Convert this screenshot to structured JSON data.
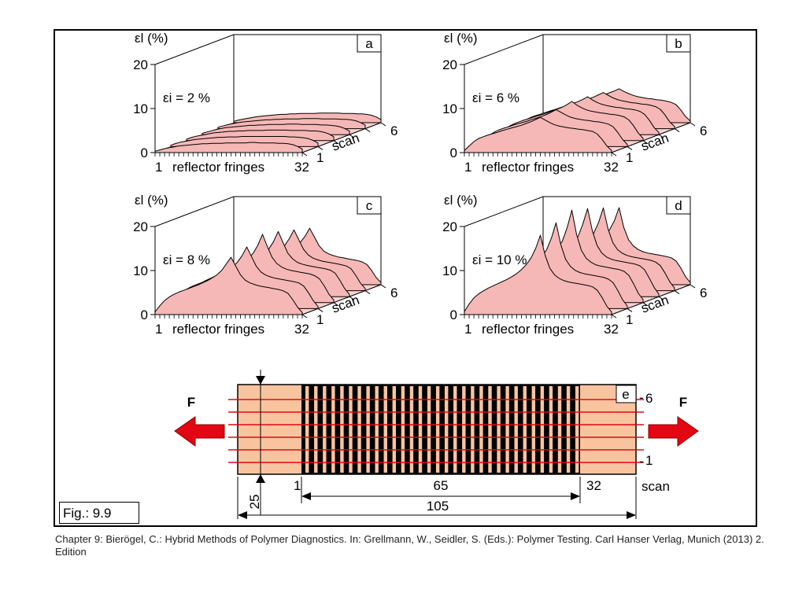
{
  "figure_label": "Fig.: 9.9",
  "caption": "Chapter 9: Bierögel, C.: Hybrid Methods of Polymer Diagnostics. In: Grellmann, W., Seidler, S. (Eds.): Polymer Testing. Carl Hanser Verlag, Munich (2013) 2. Edition",
  "colors": {
    "surface_fill": "#f5b8b6",
    "surface_floor": "#f9d3d1",
    "specimen": "#f8c4a0",
    "arrow": "#e30613",
    "scan_line": "#e30613"
  },
  "chart_data": [
    {
      "type": "area",
      "panel": "a",
      "strain_label": "εi = 2  %",
      "ylabel": "εl (%)",
      "xlabel": "reflector fringes",
      "x_ticks": [
        "1",
        "32"
      ],
      "y_ticks": [
        "0",
        "10",
        "20"
      ],
      "ylim": [
        0,
        20
      ],
      "depth_label": "scan",
      "depth_ticks": [
        "1",
        "6"
      ],
      "x_range": [
        1,
        32
      ],
      "series": [
        {
          "values": [
            0.3,
            0.6,
            0.9,
            1.1,
            1.3,
            1.5,
            1.6,
            1.7,
            1.8,
            1.9,
            2.0,
            2.0,
            2.1,
            2.1,
            2.1,
            2.2,
            2.2,
            2.2,
            2.2,
            2.2,
            2.3,
            2.3,
            2.2,
            2.2,
            2.2,
            2.2,
            2.1,
            2.1,
            2.0,
            1.8,
            1.4,
            0.8
          ]
        },
        {
          "values": [
            0.3,
            0.7,
            1.0,
            1.2,
            1.4,
            1.6,
            1.7,
            1.8,
            1.9,
            2.0,
            2.1,
            2.1,
            2.2,
            2.2,
            2.2,
            2.3,
            2.3,
            2.3,
            2.3,
            2.3,
            2.3,
            2.3,
            2.3,
            2.3,
            2.3,
            2.2,
            2.2,
            2.1,
            2.0,
            1.8,
            1.4,
            0.8
          ]
        },
        {
          "values": [
            0.3,
            0.7,
            1.0,
            1.2,
            1.4,
            1.6,
            1.8,
            1.9,
            2.0,
            2.1,
            2.1,
            2.2,
            2.2,
            2.3,
            2.3,
            2.3,
            2.3,
            2.4,
            2.4,
            2.4,
            2.4,
            2.4,
            2.3,
            2.3,
            2.3,
            2.3,
            2.2,
            2.2,
            2.1,
            1.9,
            1.5,
            0.9
          ]
        },
        {
          "values": [
            0.3,
            0.6,
            0.9,
            1.2,
            1.4,
            1.6,
            1.7,
            1.8,
            1.9,
            2.0,
            2.1,
            2.1,
            2.2,
            2.2,
            2.3,
            2.3,
            2.3,
            2.3,
            2.4,
            2.4,
            2.4,
            2.3,
            2.3,
            2.3,
            2.3,
            2.2,
            2.2,
            2.1,
            2.0,
            1.8,
            1.4,
            0.8
          ]
        },
        {
          "values": [
            0.3,
            0.6,
            0.9,
            1.1,
            1.3,
            1.5,
            1.6,
            1.7,
            1.8,
            1.9,
            2.0,
            2.0,
            2.1,
            2.1,
            2.2,
            2.2,
            2.2,
            2.2,
            2.3,
            2.3,
            2.3,
            2.3,
            2.2,
            2.2,
            2.2,
            2.2,
            2.1,
            2.1,
            2.0,
            1.8,
            1.4,
            0.8
          ]
        },
        {
          "values": [
            0.3,
            0.6,
            0.8,
            1.0,
            1.2,
            1.4,
            1.5,
            1.6,
            1.7,
            1.8,
            1.9,
            1.9,
            2.0,
            2.0,
            2.1,
            2.1,
            2.1,
            2.1,
            2.2,
            2.2,
            2.2,
            2.2,
            2.2,
            2.1,
            2.1,
            2.1,
            2.0,
            2.0,
            1.9,
            1.7,
            1.3,
            0.7
          ]
        }
      ]
    },
    {
      "type": "area",
      "panel": "b",
      "strain_label": "εi = 6  %",
      "ylabel": "εl (%)",
      "xlabel": "reflector fringes",
      "x_ticks": [
        "1",
        "32"
      ],
      "y_ticks": [
        "0",
        "10",
        "20"
      ],
      "ylim": [
        0,
        20
      ],
      "depth_label": "scan",
      "depth_ticks": [
        "1",
        "6"
      ],
      "x_range": [
        1,
        32
      ],
      "series": [
        {
          "values": [
            0.5,
            1.5,
            2.5,
            3.2,
            3.6,
            4.0,
            4.3,
            4.6,
            5.0,
            5.3,
            5.6,
            5.9,
            6.2,
            6.6,
            7.0,
            7.5,
            8.0,
            7.4,
            6.8,
            6.3,
            6.0,
            5.8,
            5.6,
            5.5,
            5.3,
            5.2,
            5.0,
            4.8,
            4.2,
            3.0,
            1.5,
            0.5
          ]
        },
        {
          "values": [
            0.5,
            1.6,
            2.6,
            3.3,
            3.8,
            4.2,
            4.5,
            4.9,
            5.2,
            5.5,
            5.8,
            6.2,
            6.5,
            6.9,
            7.3,
            7.8,
            8.4,
            7.8,
            7.2,
            6.7,
            6.4,
            6.2,
            6.0,
            5.9,
            5.7,
            5.6,
            5.4,
            5.1,
            4.5,
            3.2,
            1.6,
            0.5
          ]
        },
        {
          "values": [
            0.5,
            1.6,
            2.7,
            3.4,
            3.9,
            4.3,
            4.7,
            5.0,
            5.4,
            5.7,
            6.0,
            6.4,
            6.8,
            7.2,
            7.6,
            8.2,
            8.9,
            8.1,
            7.5,
            7.0,
            6.7,
            6.5,
            6.3,
            6.2,
            6.0,
            5.9,
            5.7,
            5.4,
            4.7,
            3.4,
            1.7,
            0.5
          ]
        },
        {
          "values": [
            0.5,
            1.6,
            2.6,
            3.4,
            3.9,
            4.3,
            4.6,
            5.0,
            5.3,
            5.6,
            6.0,
            6.3,
            6.7,
            7.1,
            7.5,
            8.0,
            8.6,
            7.9,
            7.3,
            6.9,
            6.6,
            6.4,
            6.2,
            6.1,
            5.9,
            5.8,
            5.6,
            5.3,
            4.6,
            3.3,
            1.6,
            0.5
          ]
        },
        {
          "values": [
            0.5,
            1.5,
            2.5,
            3.3,
            3.7,
            4.1,
            4.4,
            4.8,
            5.1,
            5.4,
            5.7,
            6.1,
            6.4,
            6.8,
            7.2,
            7.7,
            8.2,
            7.6,
            7.0,
            6.6,
            6.3,
            6.1,
            5.9,
            5.8,
            5.6,
            5.5,
            5.3,
            5.0,
            4.4,
            3.1,
            1.5,
            0.5
          ]
        },
        {
          "values": [
            0.5,
            1.4,
            2.4,
            3.1,
            3.5,
            3.9,
            4.2,
            4.5,
            4.8,
            5.1,
            5.4,
            5.7,
            6.0,
            6.4,
            6.8,
            7.2,
            7.7,
            7.1,
            6.6,
            6.2,
            5.9,
            5.7,
            5.5,
            5.4,
            5.2,
            5.1,
            4.9,
            4.6,
            4.1,
            2.9,
            1.4,
            0.4
          ]
        }
      ]
    },
    {
      "type": "area",
      "panel": "c",
      "strain_label": "εi = 8  %",
      "ylabel": "εl (%)",
      "xlabel": "reflector fringes",
      "x_ticks": [
        "1",
        "32"
      ],
      "y_ticks": [
        "0",
        "10",
        "20"
      ],
      "ylim": [
        0,
        20
      ],
      "depth_label": "scan",
      "depth_ticks": [
        "1",
        "6"
      ],
      "x_range": [
        1,
        32
      ],
      "series": [
        {
          "values": [
            0.6,
            2.0,
            3.2,
            4.0,
            4.6,
            5.1,
            5.5,
            5.9,
            6.3,
            6.7,
            7.2,
            7.7,
            8.3,
            9.0,
            10.0,
            11.5,
            13.0,
            11.0,
            9.0,
            7.8,
            7.2,
            6.8,
            6.5,
            6.3,
            6.1,
            5.9,
            5.7,
            5.4,
            4.8,
            3.4,
            1.7,
            0.5
          ]
        },
        {
          "values": [
            0.6,
            2.1,
            3.4,
            4.2,
            4.8,
            5.3,
            5.7,
            6.1,
            6.5,
            7.0,
            7.5,
            8.0,
            8.7,
            9.5,
            10.5,
            12.0,
            14.0,
            11.8,
            9.6,
            8.3,
            7.6,
            7.2,
            6.9,
            6.7,
            6.5,
            6.3,
            6.1,
            5.8,
            5.1,
            3.6,
            1.8,
            0.5
          ]
        },
        {
          "values": [
            0.6,
            2.2,
            3.5,
            4.4,
            5.0,
            5.5,
            6.0,
            6.4,
            6.8,
            7.3,
            7.8,
            8.4,
            9.1,
            10.0,
            11.2,
            13.0,
            15.5,
            12.8,
            10.3,
            8.9,
            8.1,
            7.6,
            7.3,
            7.1,
            6.9,
            6.7,
            6.5,
            6.1,
            5.4,
            3.8,
            1.9,
            0.6
          ]
        },
        {
          "values": [
            0.6,
            2.2,
            3.5,
            4.3,
            4.9,
            5.4,
            5.9,
            6.3,
            6.7,
            7.1,
            7.6,
            8.2,
            8.9,
            9.7,
            10.8,
            12.5,
            14.8,
            12.3,
            9.9,
            8.6,
            7.8,
            7.4,
            7.1,
            6.9,
            6.7,
            6.5,
            6.3,
            6.0,
            5.3,
            3.7,
            1.8,
            0.5
          ]
        },
        {
          "values": [
            0.6,
            2.1,
            3.3,
            4.1,
            4.7,
            5.2,
            5.6,
            6.0,
            6.4,
            6.8,
            7.3,
            7.8,
            8.5,
            9.2,
            10.2,
            11.8,
            13.8,
            11.6,
            9.4,
            8.1,
            7.4,
            7.0,
            6.7,
            6.5,
            6.3,
            6.1,
            5.9,
            5.6,
            5.0,
            3.5,
            1.7,
            0.5
          ]
        },
        {
          "values": [
            0.5,
            1.9,
            3.1,
            3.9,
            4.4,
            4.9,
            5.3,
            5.7,
            6.1,
            6.5,
            6.9,
            7.4,
            8.0,
            8.7,
            9.6,
            11.0,
            12.8,
            10.8,
            8.8,
            7.6,
            7.0,
            6.6,
            6.3,
            6.1,
            5.9,
            5.7,
            5.5,
            5.2,
            4.6,
            3.3,
            1.6,
            0.5
          ]
        }
      ]
    },
    {
      "type": "area",
      "panel": "d",
      "strain_label": "εi = 10 %",
      "ylabel": "εl (%)",
      "xlabel": "reflector fringes",
      "x_ticks": [
        "1",
        "32"
      ],
      "y_ticks": [
        "0",
        "10",
        "20"
      ],
      "ylim": [
        0,
        20
      ],
      "depth_label": "scan",
      "depth_ticks": [
        "1",
        "6"
      ],
      "x_range": [
        1,
        32
      ],
      "series": [
        {
          "values": [
            0.7,
            2.4,
            3.8,
            4.7,
            5.4,
            6.0,
            6.5,
            7.0,
            7.5,
            8.0,
            8.6,
            9.3,
            10.2,
            11.3,
            12.8,
            15.0,
            18.0,
            13.5,
            10.5,
            9.0,
            8.2,
            7.7,
            7.4,
            7.2,
            7.0,
            6.8,
            6.6,
            6.3,
            5.5,
            3.9,
            1.9,
            0.6
          ]
        },
        {
          "values": [
            0.7,
            2.5,
            4.0,
            4.9,
            5.6,
            6.2,
            6.7,
            7.2,
            7.8,
            8.3,
            8.9,
            9.7,
            10.6,
            11.8,
            13.4,
            16.0,
            19.5,
            14.5,
            11.2,
            9.6,
            8.7,
            8.2,
            7.9,
            7.7,
            7.5,
            7.3,
            7.1,
            6.7,
            5.9,
            4.1,
            2.0,
            0.6
          ]
        },
        {
          "values": [
            0.7,
            2.6,
            4.1,
            5.0,
            5.8,
            6.4,
            6.9,
            7.5,
            8.0,
            8.6,
            9.2,
            10.0,
            11.0,
            12.3,
            14.0,
            17.0,
            21.0,
            15.5,
            11.9,
            10.1,
            9.2,
            8.6,
            8.3,
            8.1,
            7.9,
            7.7,
            7.5,
            7.1,
            6.2,
            4.3,
            2.1,
            0.7
          ]
        },
        {
          "values": [
            0.7,
            2.6,
            4.0,
            5.0,
            5.7,
            6.3,
            6.8,
            7.4,
            7.9,
            8.5,
            9.1,
            9.9,
            10.8,
            12.0,
            13.7,
            16.5,
            20.0,
            15.0,
            11.6,
            9.9,
            9.0,
            8.5,
            8.2,
            8.0,
            7.8,
            7.6,
            7.4,
            7.0,
            6.1,
            4.2,
            2.1,
            0.6
          ]
        },
        {
          "values": [
            0.7,
            2.5,
            3.9,
            4.8,
            5.5,
            6.1,
            6.6,
            7.1,
            7.6,
            8.2,
            8.8,
            9.5,
            10.4,
            11.5,
            13.1,
            15.5,
            18.8,
            14.0,
            10.9,
            9.3,
            8.5,
            8.0,
            7.7,
            7.5,
            7.3,
            7.1,
            6.9,
            6.5,
            5.7,
            4.0,
            2.0,
            0.6
          ]
        },
        {
          "values": [
            0.6,
            2.3,
            3.7,
            4.6,
            5.2,
            5.8,
            6.3,
            6.8,
            7.3,
            7.8,
            8.4,
            9.1,
            9.9,
            11.0,
            12.5,
            14.5,
            17.5,
            13.0,
            10.2,
            8.8,
            8.0,
            7.5,
            7.2,
            7.0,
            6.8,
            6.6,
            6.4,
            6.1,
            5.4,
            3.8,
            1.8,
            0.5
          ]
        }
      ]
    }
  ],
  "specimen": {
    "panel": "e",
    "force_label": "F",
    "scan_top": "6",
    "scan_bottom": "1",
    "scan_label": "scan",
    "fringe_first": "1",
    "fringe_last": "32",
    "dim_fringes": "65",
    "dim_total": "105",
    "dim_offset": "25",
    "fringe_count": 32,
    "scan_line_count": 6
  }
}
